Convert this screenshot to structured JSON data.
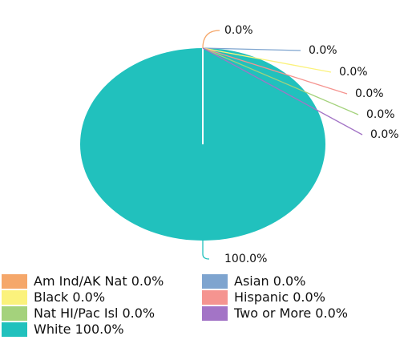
{
  "chart_data": {
    "type": "pie",
    "categories": [
      "Am Ind/AK Nat",
      "Asian",
      "Black",
      "Hispanic",
      "Nat HI/Pac Isl",
      "Two or More",
      "White"
    ],
    "values": [
      0,
      0,
      0,
      0,
      0,
      0,
      100
    ],
    "value_labels": [
      "0.0%",
      "0.0%",
      "0.0%",
      "0.0%",
      "0.0%",
      "0.0%",
      "100.0%"
    ],
    "colors": [
      "#f5a76a",
      "#7ea4cf",
      "#fbf27c",
      "#f59490",
      "#a4d27c",
      "#a374c6",
      "#21c1bd"
    ],
    "legend": "bottom"
  }
}
